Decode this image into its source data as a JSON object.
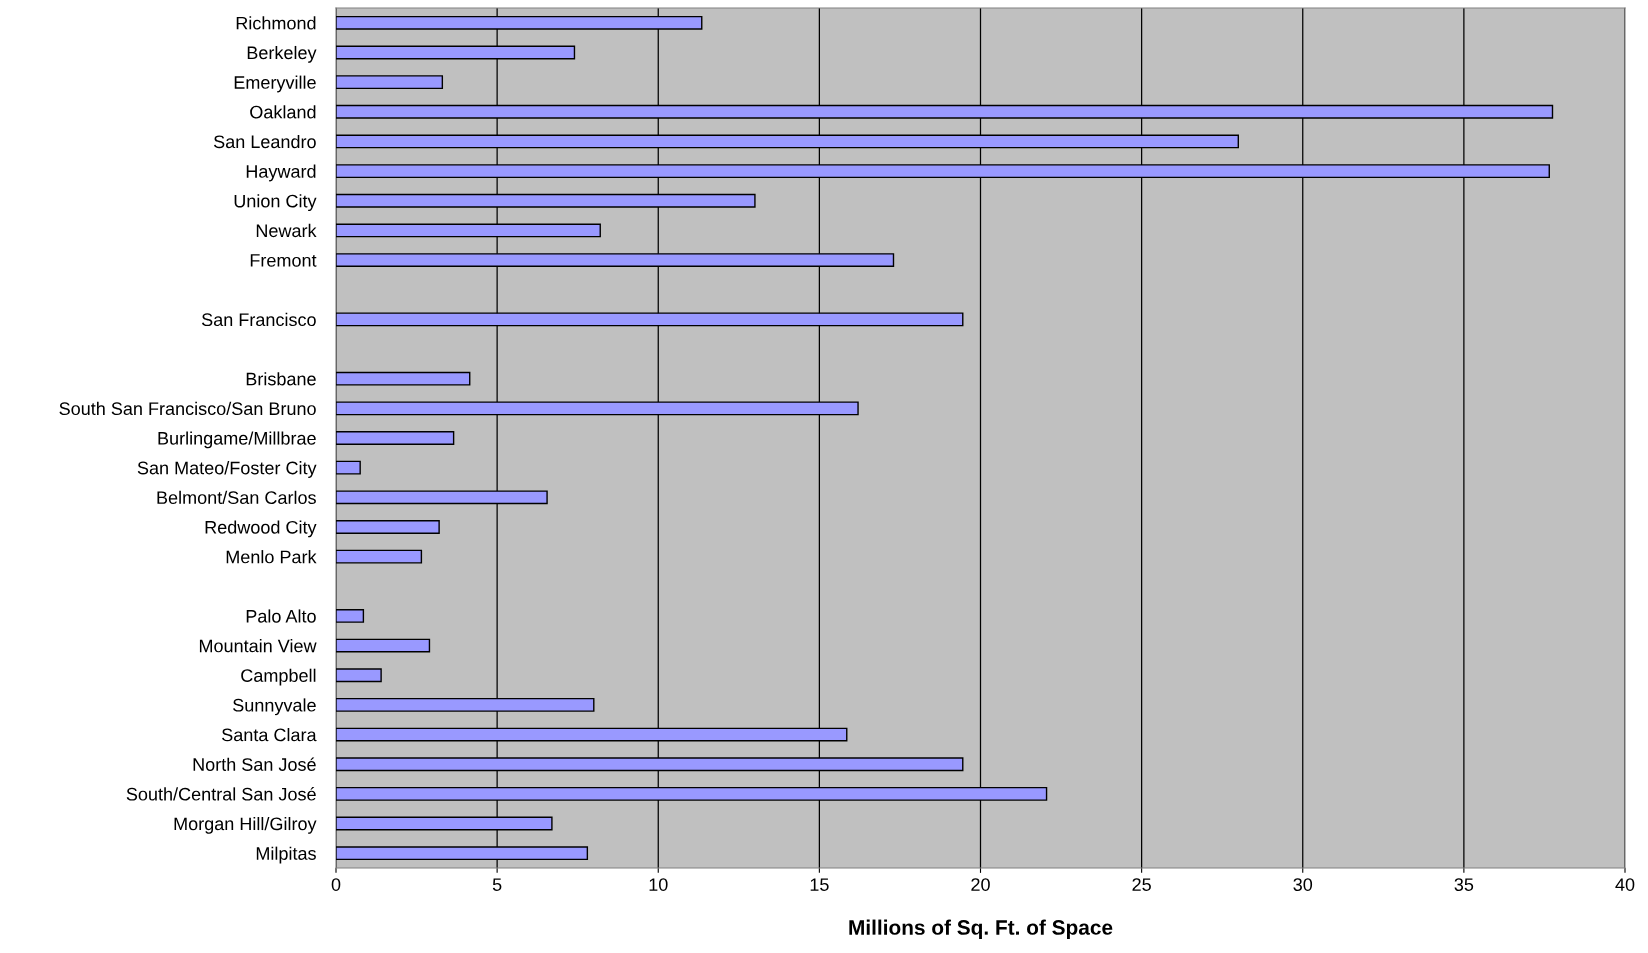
{
  "chart_data": {
    "type": "bar",
    "orientation": "horizontal",
    "xlabel": "Millions of Sq. Ft. of Space",
    "categories": [
      "Richmond",
      "Berkeley",
      "Emeryville",
      "Oakland",
      "San Leandro",
      "Hayward",
      "Union City",
      "Newark",
      "Fremont",
      null,
      "San Francisco",
      null,
      "Brisbane",
      "South San Francisco/San Bruno",
      "Burlingame/Millbrae",
      "San Mateo/Foster City",
      "Belmont/San Carlos",
      "Redwood City",
      "Menlo Park",
      null,
      "Palo Alto",
      "Mountain View",
      "Campbell",
      "Sunnyvale",
      "Santa Clara",
      "North San José",
      "South/Central San José",
      "Morgan Hill/Gilroy",
      "Milpitas"
    ],
    "values": [
      11.35,
      7.4,
      3.3,
      37.75,
      28.0,
      37.65,
      13.0,
      8.2,
      17.3,
      null,
      19.45,
      null,
      4.15,
      16.2,
      3.65,
      0.75,
      6.55,
      3.2,
      2.65,
      null,
      0.85,
      2.9,
      1.4,
      8.0,
      15.85,
      19.45,
      22.05,
      6.7,
      7.8
    ],
    "color": "#9999ff",
    "xlim": [
      0,
      40
    ],
    "xticks": [
      0,
      5,
      10,
      15,
      20,
      25,
      30,
      35,
      40
    ],
    "grid": "x"
  }
}
